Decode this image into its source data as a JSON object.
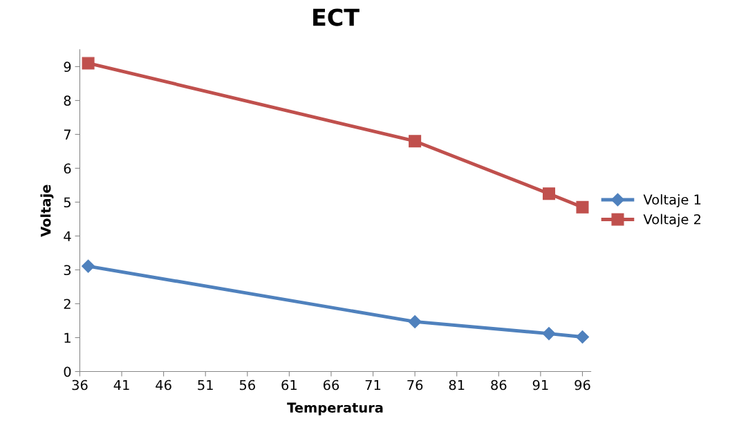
{
  "chart_data": {
    "type": "line",
    "title": "ECT",
    "xlabel": "Temperatura",
    "ylabel": "Voltaje",
    "x": [
      37,
      76,
      92,
      96
    ],
    "series": [
      {
        "name": "Voltaje 1",
        "color": "#4f81bd",
        "marker": "diamond",
        "values": [
          3.11,
          1.47,
          1.12,
          1.02
        ]
      },
      {
        "name": "Voltaje 2",
        "color": "#c0504d",
        "marker": "square",
        "values": [
          9.1,
          6.8,
          5.25,
          4.85
        ]
      }
    ],
    "xlim": [
      36,
      97
    ],
    "xticks": [
      36,
      41,
      46,
      51,
      56,
      61,
      66,
      71,
      76,
      81,
      86,
      91,
      96
    ],
    "ylim": [
      0,
      9.5
    ],
    "yticks": [
      0,
      1,
      2,
      3,
      4,
      5,
      6,
      7,
      8,
      9
    ],
    "grid": false,
    "legend": "right",
    "line_style": "solid"
  }
}
